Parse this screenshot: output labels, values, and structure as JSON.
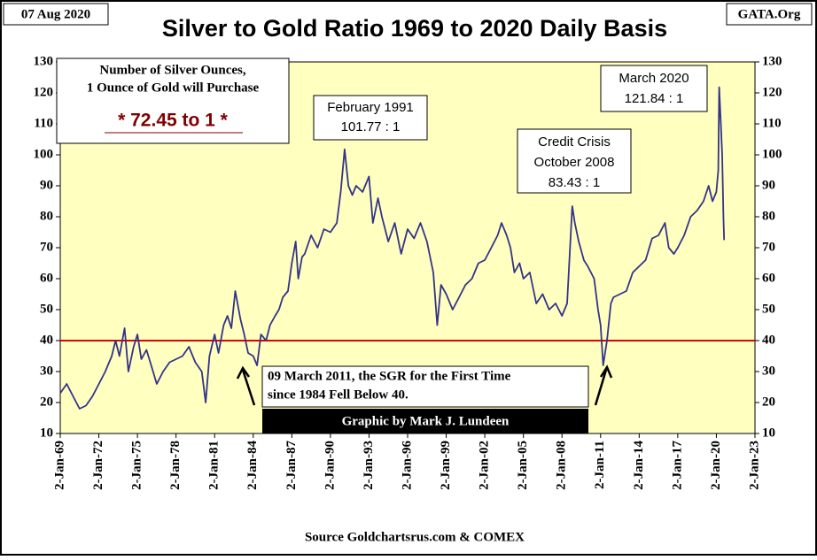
{
  "chart_data": {
    "type": "line",
    "title": "Silver to Gold Ratio 1969 to 2020 Daily Basis",
    "date_label": "07 Aug 2020",
    "site_label": "GATA.Org",
    "info_box": {
      "line1": "Number of Silver Ounces,",
      "line2": "1 Ounce of Gold will Purchase",
      "value_text": "* 72.45 to 1 *"
    },
    "annotations": {
      "feb1991": [
        "February 1991",
        "101.77 : 1"
      ],
      "oct2008": [
        "Credit Crisis",
        "October 2008",
        "83.43 : 1"
      ],
      "mar2020": [
        "March 2020",
        "121.84 : 1"
      ],
      "mar2011": [
        "09 March 2011, the SGR for the First Time",
        "since 1984 Fell Below 40."
      ]
    },
    "credit": "Graphic by Mark J. Lundeen",
    "source": "Source Goldchartsrus.com & COMEX",
    "xlim": [
      1969,
      2023
    ],
    "xticks": [
      {
        "value": 1969,
        "label": "2-Jan-69"
      },
      {
        "value": 1972,
        "label": "2-Jan-72"
      },
      {
        "value": 1975,
        "label": "2-Jan-75"
      },
      {
        "value": 1978,
        "label": "2-Jan-78"
      },
      {
        "value": 1981,
        "label": "2-Jan-81"
      },
      {
        "value": 1984,
        "label": "2-Jan-84"
      },
      {
        "value": 1987,
        "label": "2-Jan-87"
      },
      {
        "value": 1990,
        "label": "2-Jan-90"
      },
      {
        "value": 1993,
        "label": "2-Jan-93"
      },
      {
        "value": 1996,
        "label": "2-Jan-96"
      },
      {
        "value": 1999,
        "label": "2-Jan-99"
      },
      {
        "value": 2002,
        "label": "2-Jan-02"
      },
      {
        "value": 2005,
        "label": "2-Jan-05"
      },
      {
        "value": 2008,
        "label": "2-Jan-08"
      },
      {
        "value": 2011,
        "label": "2-Jan-11"
      },
      {
        "value": 2014,
        "label": "2-Jan-14"
      },
      {
        "value": 2017,
        "label": "2-Jan-17"
      },
      {
        "value": 2020,
        "label": "2-Jan-20"
      },
      {
        "value": 2023,
        "label": "2-Jan-23"
      }
    ],
    "ylim": [
      10,
      130
    ],
    "yticks": [
      10,
      20,
      30,
      40,
      50,
      60,
      70,
      80,
      90,
      100,
      110,
      120,
      130
    ],
    "reference_line": {
      "value": 40,
      "color": "#e00000"
    },
    "series": [
      {
        "name": "Silver to Gold Ratio",
        "color": "#333388",
        "x": [
          1969.0,
          1969.5,
          1970.0,
          1970.5,
          1971.0,
          1971.5,
          1972.0,
          1972.5,
          1973.0,
          1973.3,
          1973.6,
          1974.0,
          1974.3,
          1974.7,
          1975.0,
          1975.3,
          1975.7,
          1976.0,
          1976.5,
          1977.0,
          1977.5,
          1978.0,
          1978.5,
          1979.0,
          1979.5,
          1980.0,
          1980.3,
          1980.6,
          1981.0,
          1981.3,
          1981.7,
          1982.0,
          1982.3,
          1982.6,
          1983.0,
          1983.3,
          1983.6,
          1984.0,
          1984.3,
          1984.6,
          1985.0,
          1985.3,
          1985.7,
          1986.0,
          1986.3,
          1986.7,
          1987.0,
          1987.3,
          1987.5,
          1987.8,
          1988.0,
          1988.5,
          1989.0,
          1989.5,
          1990.0,
          1990.5,
          1990.8,
          1991.1,
          1991.4,
          1991.7,
          1992.0,
          1992.5,
          1993.0,
          1993.3,
          1993.7,
          1994.0,
          1994.5,
          1995.0,
          1995.5,
          1996.0,
          1996.5,
          1997.0,
          1997.5,
          1998.0,
          1998.3,
          1998.6,
          1999.0,
          1999.5,
          2000.0,
          2000.5,
          2001.0,
          2001.5,
          2002.0,
          2002.5,
          2003.0,
          2003.3,
          2003.7,
          2004.0,
          2004.3,
          2004.7,
          2005.0,
          2005.5,
          2006.0,
          2006.5,
          2007.0,
          2007.5,
          2008.0,
          2008.4,
          2008.8,
          2009.0,
          2009.3,
          2009.7,
          2010.0,
          2010.5,
          2010.8,
          2011.0,
          2011.2,
          2011.5,
          2011.8,
          2012.0,
          2012.5,
          2013.0,
          2013.5,
          2014.0,
          2014.5,
          2015.0,
          2015.5,
          2016.0,
          2016.3,
          2016.7,
          2017.0,
          2017.5,
          2018.0,
          2018.5,
          2019.0,
          2019.4,
          2019.7,
          2020.0,
          2020.15,
          2020.22,
          2020.35,
          2020.45,
          2020.55,
          2020.6
        ],
        "values": [
          23,
          26,
          22,
          18,
          19,
          22,
          26,
          30,
          35,
          40,
          35,
          44,
          30,
          38,
          42,
          34,
          37,
          33,
          26,
          30,
          33,
          34,
          35,
          38,
          33,
          30,
          20,
          35,
          42,
          36,
          45,
          48,
          44,
          56,
          47,
          42,
          36,
          35,
          32,
          42,
          40,
          45,
          48,
          50,
          54,
          56,
          65,
          72,
          60,
          67,
          68,
          74,
          70,
          76,
          75,
          78,
          88,
          101.77,
          90,
          87,
          90,
          88,
          93,
          78,
          86,
          80,
          72,
          78,
          68,
          76,
          73,
          78,
          72,
          62,
          45,
          58,
          55,
          50,
          54,
          58,
          60,
          65,
          66,
          70,
          74,
          78,
          74,
          70,
          62,
          65,
          60,
          62,
          52,
          55,
          50,
          52,
          48,
          52,
          83.43,
          78,
          72,
          66,
          64,
          60,
          50,
          45,
          32,
          40,
          52,
          54,
          55,
          56,
          62,
          64,
          66,
          73,
          74,
          78,
          70,
          68,
          70,
          74,
          80,
          82,
          85,
          90,
          85,
          88,
          95,
          121.84,
          110,
          100,
          80,
          72.45
        ]
      }
    ]
  }
}
